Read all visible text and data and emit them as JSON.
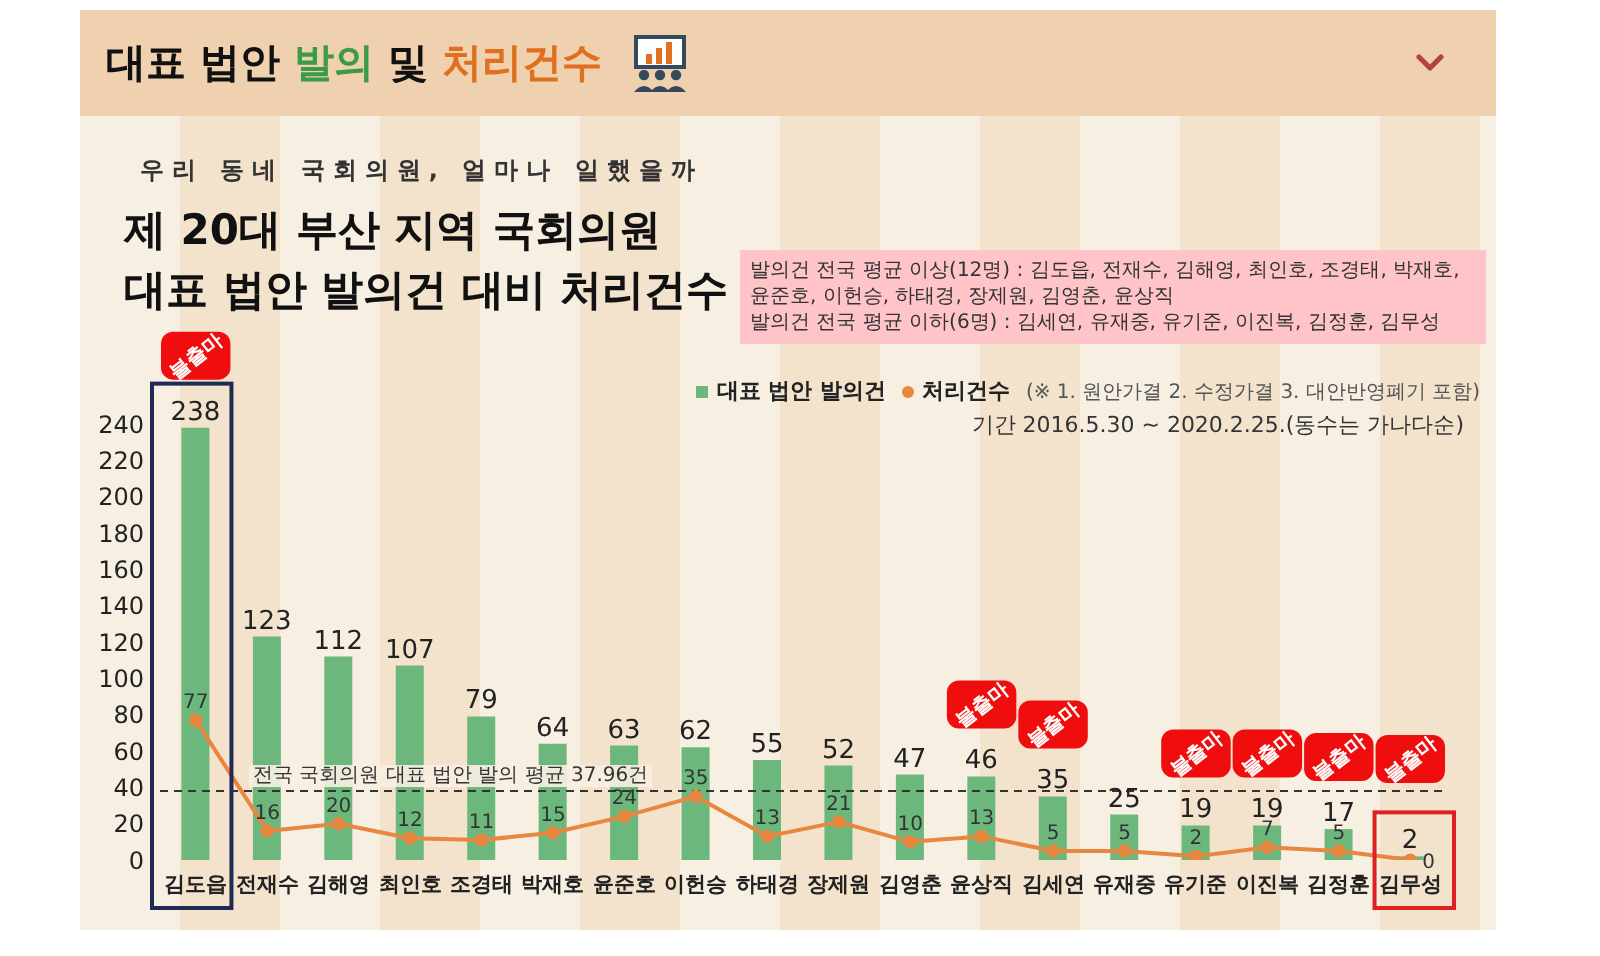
{
  "chart_data": {
    "type": "bar",
    "title": "제 20대 부산 지역 국회의원\n대표 법안 발의건 대비 처리건수",
    "subtitle": "우리 동네 국회의원, 얼마나 일했을까",
    "categories": [
      "김도읍",
      "전재수",
      "김해영",
      "최인호",
      "조경태",
      "박재호",
      "윤준호",
      "이헌승",
      "하태경",
      "장제원",
      "김영춘",
      "윤상직",
      "김세연",
      "유재중",
      "유기준",
      "이진복",
      "김정훈",
      "김무성"
    ],
    "series": [
      {
        "name": "대표 법안 발의건",
        "color": "#6cb87c",
        "values": [
          238,
          123,
          112,
          107,
          79,
          64,
          63,
          62,
          55,
          52,
          47,
          46,
          35,
          25,
          19,
          19,
          17,
          2
        ]
      },
      {
        "name": "처리건수",
        "type": "line",
        "color": "#e8873f",
        "values": [
          77,
          16,
          20,
          12,
          11,
          15,
          24,
          35,
          13,
          21,
          10,
          13,
          5,
          5,
          2,
          7,
          5,
          0
        ]
      }
    ],
    "ylim": [
      0,
      240
    ],
    "yticks": [
      0,
      20,
      40,
      60,
      80,
      100,
      120,
      140,
      160,
      180,
      200,
      220,
      240
    ],
    "legend": "top right",
    "data_labels": true,
    "marker": "circle",
    "ref_lines": [
      {
        "axis": "y",
        "value": 37.96,
        "label": "전국 국회의원 대표 법안 발의 평균 37.96건",
        "color": "#333333",
        "line_style": "dashed"
      }
    ],
    "annotations": [
      "대표 법안 발의 및 처리건수",
      "발의건 전국 평균 이상(12명) : 김도읍, 전재수, 김해영, 최인호, 조경태, 박재호, 윤준호, 이헌승, 하태경, 장제원, 김영춘, 윤상직",
      "발의건 전국 평균 이하(6명) : 김세연, 유재중, 유기준, 이진복, 김정훈, 김무성",
      "(※ 1. 원안가결 2. 수정가결 3. 대안반영폐기 포함)",
      "기간 2016.5.30 ~ 2020.2.25.(동수는 가나다순)",
      {
        "text": "불출마",
        "x": "김도읍",
        "y": 238
      },
      {
        "text": "불출마",
        "x": "윤상직",
        "y": 46
      },
      {
        "text": "불출마",
        "x": "김세연",
        "y": 35
      },
      {
        "text": "불출마",
        "x": "유기준",
        "y": 19
      },
      {
        "text": "불출마",
        "x": "이진복",
        "y": 19
      },
      {
        "text": "불출마",
        "x": "김정훈",
        "y": 17
      },
      {
        "text": "불출마",
        "x": "김무성"
      }
    ]
  }
}
